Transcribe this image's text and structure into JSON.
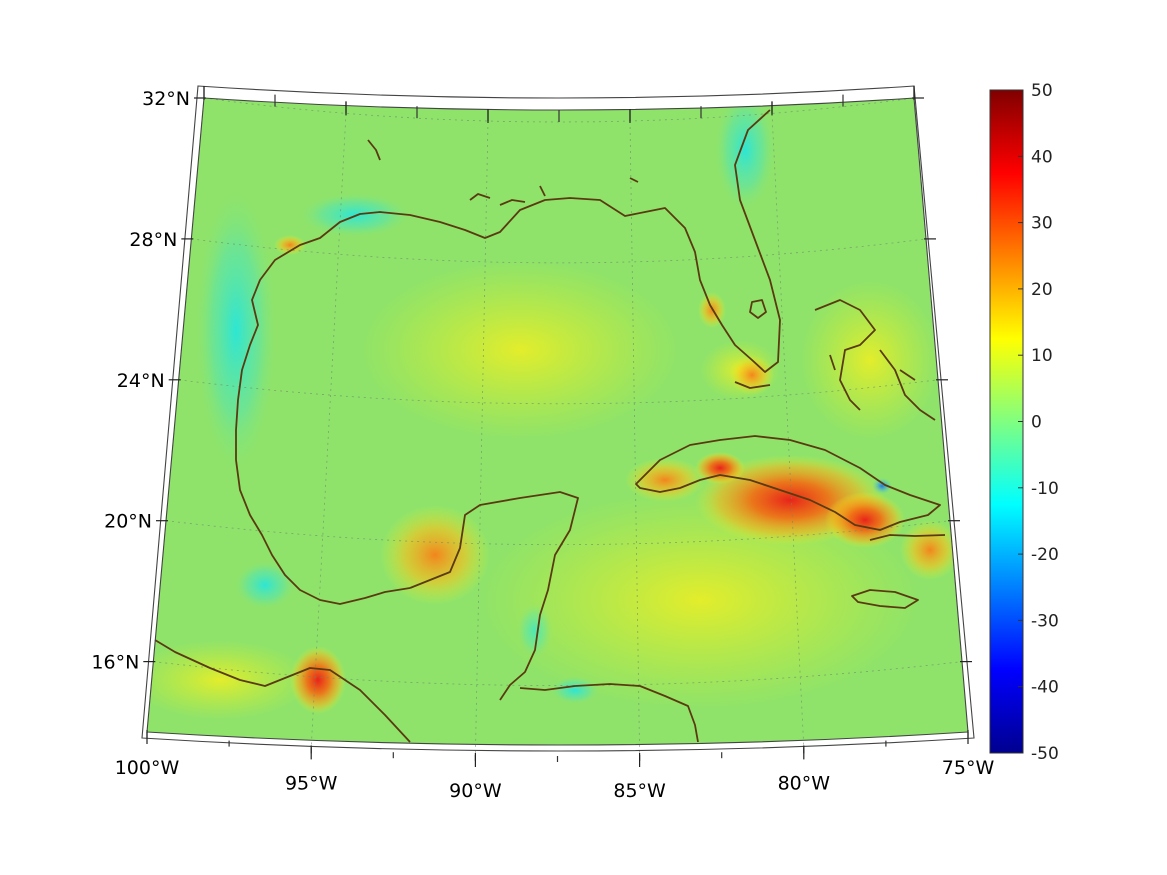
{
  "map": {
    "projection": "conic",
    "region": "Gulf of Mexico and Caribbean",
    "lon_range": [
      -100,
      -75
    ],
    "lat_range": [
      14,
      32
    ],
    "lat_ticks": [
      {
        "value": 32,
        "label": "32°N"
      },
      {
        "value": 28,
        "label": "28°N"
      },
      {
        "value": 24,
        "label": "24°N"
      },
      {
        "value": 20,
        "label": "20°N"
      },
      {
        "value": 16,
        "label": "16°N"
      }
    ],
    "lon_ticks": [
      {
        "value": -100,
        "label": "100°W"
      },
      {
        "value": -95,
        "label": "95°W"
      },
      {
        "value": -90,
        "label": "90°W"
      },
      {
        "value": -85,
        "label": "85°W"
      },
      {
        "value": -80,
        "label": "80°W"
      },
      {
        "value": -75,
        "label": "75°W"
      }
    ],
    "grid": true,
    "coastline_color": "#5a3a10",
    "field_background": "#8fe36a"
  },
  "colorbar": {
    "colormap": "jet",
    "range": [
      -50,
      50
    ],
    "placement": "right",
    "ticks": [
      "50",
      "40",
      "30",
      "20",
      "10",
      "0",
      "-10",
      "-20",
      "-30",
      "-40",
      "-50"
    ]
  }
}
